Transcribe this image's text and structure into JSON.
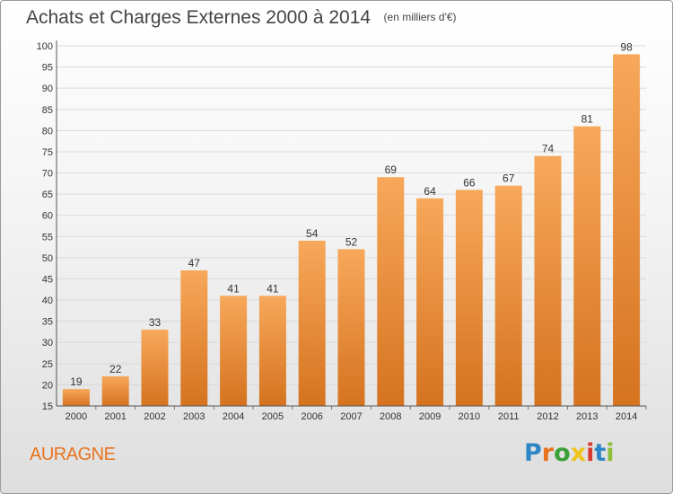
{
  "header": {
    "title": "Achats et Charges Externes 2000 à 2014",
    "subtitle": "(en milliers d'€)"
  },
  "footer": {
    "commune": "AURAGNE",
    "logo_text": "Proxiti"
  },
  "colors": {
    "bar_top": "#f7a85a",
    "bar_bottom": "#d5731f",
    "commune": "#e8731e",
    "grid": "#d9d9d9",
    "axis_text": "#333333"
  },
  "chart_data": {
    "type": "bar",
    "title": "Achats et Charges Externes 2000 à 2014",
    "subtitle": "(en milliers d'€)",
    "categories": [
      "2000",
      "2001",
      "2002",
      "2003",
      "2004",
      "2005",
      "2006",
      "2007",
      "2008",
      "2009",
      "2010",
      "2011",
      "2012",
      "2013",
      "2014"
    ],
    "values": [
      19,
      22,
      33,
      47,
      41,
      41,
      54,
      52,
      69,
      64,
      66,
      67,
      74,
      81,
      98
    ],
    "ylim": [
      15,
      100
    ],
    "yticks": [
      15,
      20,
      25,
      30,
      35,
      40,
      45,
      50,
      55,
      60,
      65,
      70,
      75,
      80,
      85,
      90,
      95,
      100
    ],
    "grid": true,
    "data_labels": true,
    "xlabel": "",
    "ylabel": ""
  }
}
